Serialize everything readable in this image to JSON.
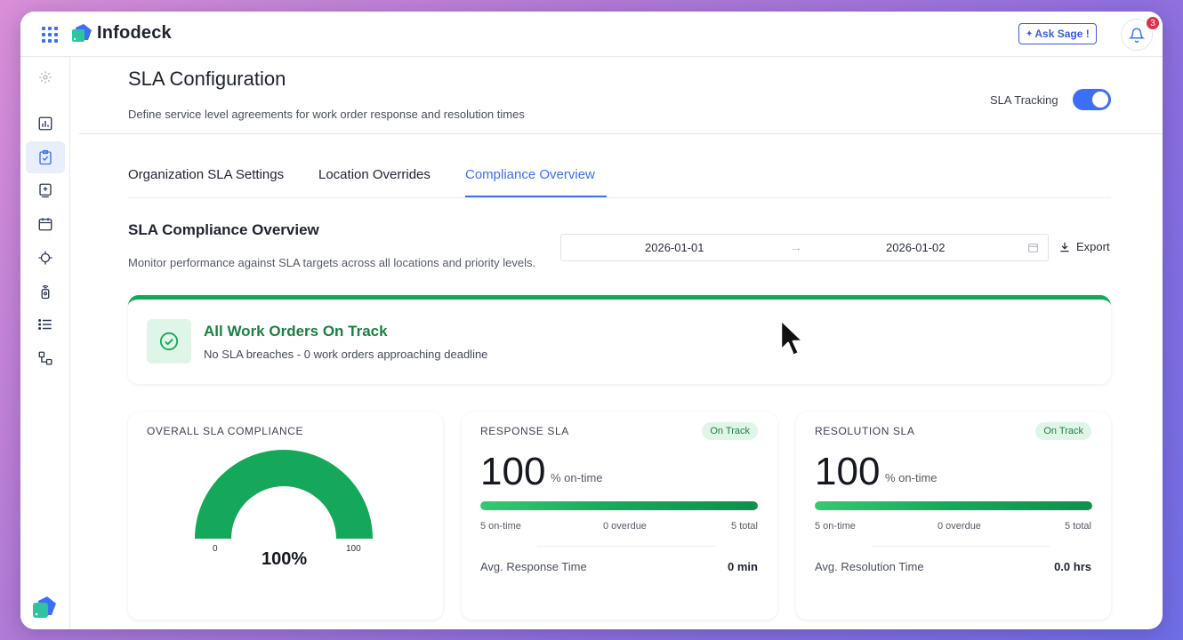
{
  "app": {
    "name": "Infodeck",
    "ask_sage": "Ask Sage !",
    "notifications_count": "3"
  },
  "page": {
    "title": "SLA Configuration",
    "subtitle": "Define service level agreements for work order response and resolution times",
    "sla_tracking_label": "SLA Tracking",
    "sla_tracking_on": true
  },
  "tabs": [
    {
      "label": "Organization SLA Settings"
    },
    {
      "label": "Location Overrides"
    },
    {
      "label": "Compliance Overview",
      "active": true
    }
  ],
  "overview": {
    "title": "SLA Compliance Overview",
    "subtitle": "Monitor performance against SLA targets across all locations and priority levels.",
    "date_start": "2026-01-01",
    "date_end": "2026-01-02",
    "export_label": "Export"
  },
  "status": {
    "title": "All Work Orders On Track",
    "subtitle": "No SLA breaches - 0 work orders approaching deadline",
    "color": "#16a85a"
  },
  "overall": {
    "label": "OVERALL SLA COMPLIANCE",
    "value": "100%",
    "fraction": 1.0,
    "min": "0",
    "max": "100"
  },
  "response": {
    "label": "RESPONSE SLA",
    "badge": "On Track",
    "value": "100",
    "unit": "% on-time",
    "fill": 1.0,
    "on_time": "5 on-time",
    "overdue": "0 overdue",
    "total": "5 total",
    "avg_label": "Avg. Response Time",
    "avg_value": "0 min"
  },
  "resolution": {
    "label": "RESOLUTION SLA",
    "badge": "On Track",
    "value": "100",
    "unit": "% on-time",
    "fill": 1.0,
    "on_time": "5 on-time",
    "overdue": "0 overdue",
    "total": "5 total",
    "avg_label": "Avg. Resolution Time",
    "avg_value": "0.0 hrs"
  },
  "colors": {
    "accent": "#3b6ff5",
    "success": "#16a85a",
    "badge_bg": "#dff5e7"
  }
}
